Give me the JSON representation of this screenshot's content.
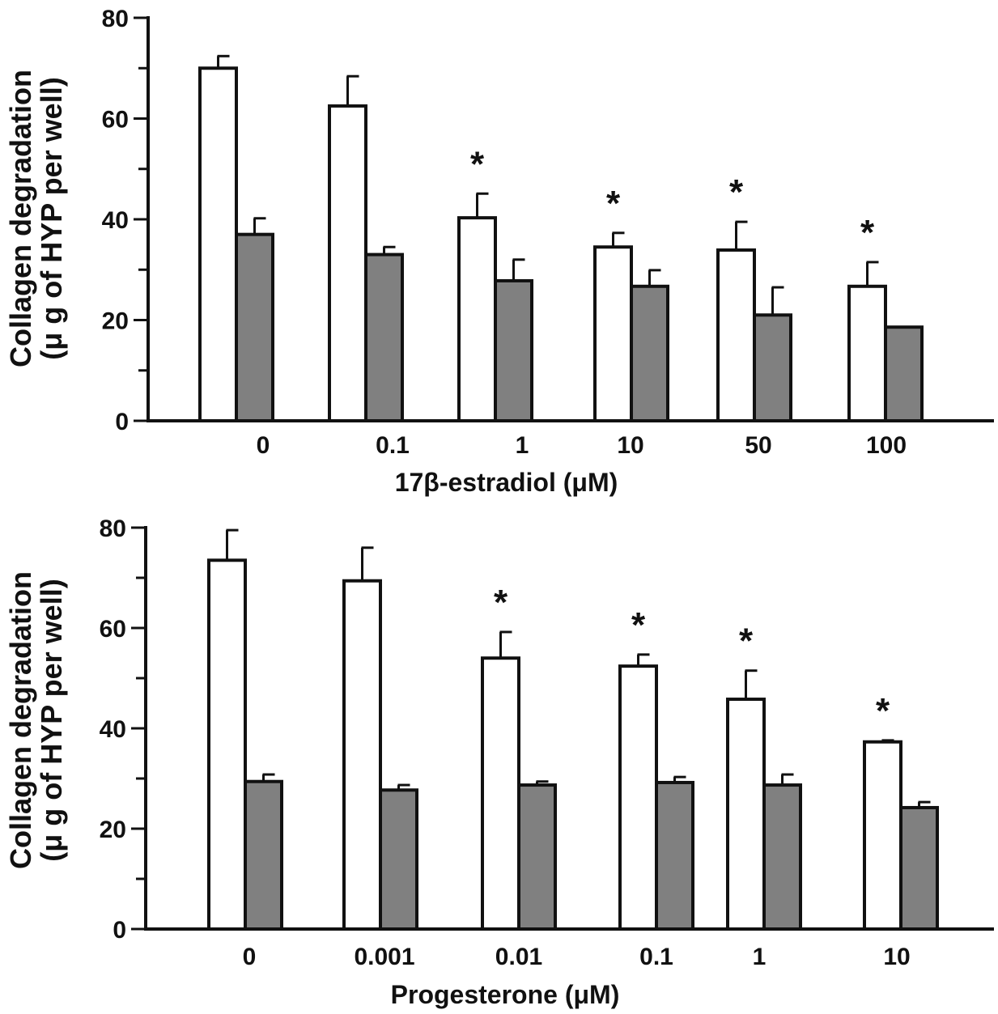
{
  "chart_data": [
    {
      "type": "bar",
      "title": "",
      "xlabel": "17β-estradiol (μM)",
      "ylabel_line1": "Collagen degradation",
      "ylabel_line2": "(μ g of HYP per well)",
      "ylim": [
        0,
        80
      ],
      "yticks": [
        "0",
        "20",
        "40",
        "60",
        "80"
      ],
      "categories": [
        "0",
        "0.1",
        "1",
        "10",
        "50",
        "100"
      ],
      "series": [
        {
          "name": "white",
          "color": "#ffffff",
          "values": [
            70,
            62.5,
            40.3,
            34.5,
            33.9,
            26.7
          ],
          "error_top": [
            72.4,
            68.4,
            45.1,
            37.3,
            39.5,
            31.5
          ]
        },
        {
          "name": "gray",
          "color": "#808080",
          "values": [
            37,
            33,
            27.8,
            26.7,
            21,
            18.6
          ],
          "error_top": [
            40.2,
            34.5,
            32,
            29.9,
            26.5,
            null
          ]
        }
      ],
      "significance_marker": "*",
      "significant": [
        false,
        false,
        true,
        true,
        true,
        true
      ]
    },
    {
      "type": "bar",
      "title": "",
      "xlabel": "Progesterone (μM)",
      "ylabel_line1": "Collagen degradation",
      "ylabel_line2": "(μ g of HYP per well)",
      "ylim": [
        0,
        80
      ],
      "yticks": [
        "0",
        "20",
        "40",
        "60",
        "80"
      ],
      "categories": [
        "0",
        "0.001",
        "0.01",
        "0.1",
        "1",
        "10"
      ],
      "series": [
        {
          "name": "white",
          "color": "#ffffff",
          "values": [
            73.5,
            69.4,
            54,
            52.4,
            45.8,
            37.3
          ],
          "error_top": [
            79.5,
            76,
            59.2,
            54.7,
            51.5,
            37.6
          ]
        },
        {
          "name": "gray",
          "color": "#808080",
          "values": [
            29.4,
            27.7,
            28.7,
            29.2,
            28.7,
            24.2
          ],
          "error_top": [
            30.8,
            28.7,
            29.4,
            30.3,
            30.8,
            25.3
          ]
        }
      ],
      "significance_marker": "*",
      "significant": [
        false,
        false,
        true,
        true,
        true,
        true
      ]
    }
  ]
}
